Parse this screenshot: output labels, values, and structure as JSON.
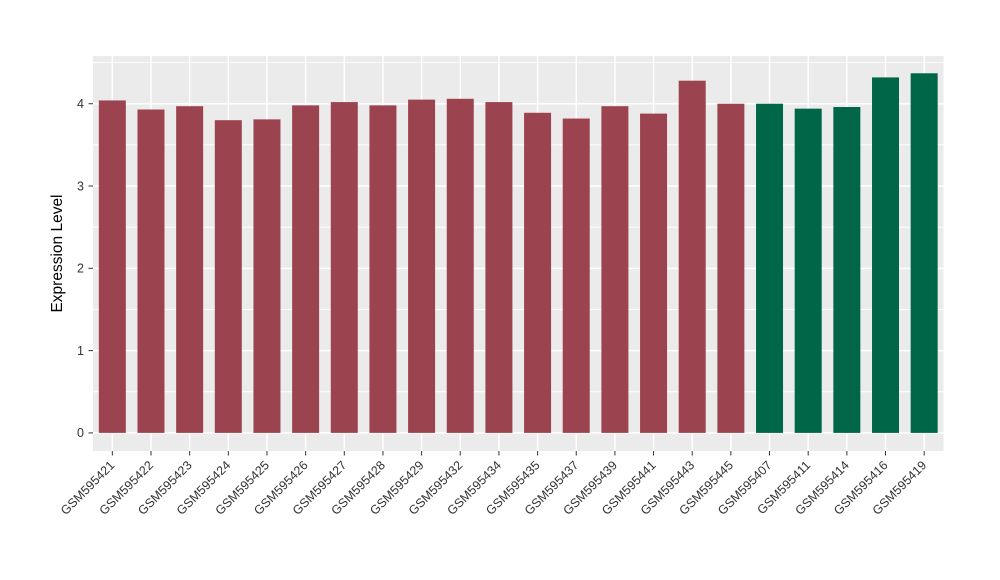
{
  "figure": {
    "background_color": "#FFFFFF",
    "panel_background_color": "#EBEBEB",
    "gridline_color": "#FFFFFF",
    "axis_text_color": "#333333",
    "axis_title_color": "#000000",
    "tick_mark_color": "#333333",
    "legend": "none"
  },
  "chart_data": {
    "type": "bar",
    "title": "",
    "xlabel": "",
    "ylabel": "Expression Level",
    "categories": [
      "GSM595421",
      "GSM595422",
      "GSM595423",
      "GSM595424",
      "GSM595425",
      "GSM595426",
      "GSM595427",
      "GSM595428",
      "GSM595429",
      "GSM595432",
      "GSM595434",
      "GSM595435",
      "GSM595437",
      "GSM595439",
      "GSM595441",
      "GSM595443",
      "GSM595445",
      "GSM595407",
      "GSM595411",
      "GSM595414",
      "GSM595416",
      "GSM595419"
    ],
    "values": [
      4.04,
      3.93,
      3.97,
      3.8,
      3.81,
      3.98,
      4.02,
      3.98,
      4.05,
      4.06,
      4.02,
      3.89,
      3.82,
      3.97,
      3.88,
      4.28,
      4.0,
      4.0,
      3.94,
      3.96,
      4.32,
      4.37
    ],
    "bar_colors": [
      "#9B4450",
      "#9B4450",
      "#9B4450",
      "#9B4450",
      "#9B4450",
      "#9B4450",
      "#9B4450",
      "#9B4450",
      "#9B4450",
      "#9B4450",
      "#9B4450",
      "#9B4450",
      "#9B4450",
      "#9B4450",
      "#9B4450",
      "#9B4450",
      "#9B4450",
      "#006648",
      "#006648",
      "#006648",
      "#006648",
      "#006648"
    ],
    "group_palette": {
      "group_1_color": "#9B4450",
      "group_2_color": "#006648"
    },
    "y_ticks": [
      0,
      1,
      2,
      3,
      4
    ],
    "y_tick_labels": [
      "0",
      "1",
      "2",
      "3",
      "4"
    ],
    "y_minor_ticks": [
      0.5,
      1.5,
      2.5,
      3.5,
      4.5
    ],
    "ylim": [
      -0.22,
      4.58
    ],
    "grid": true,
    "x_label_rotation_deg": 45,
    "legend_position": "none"
  }
}
